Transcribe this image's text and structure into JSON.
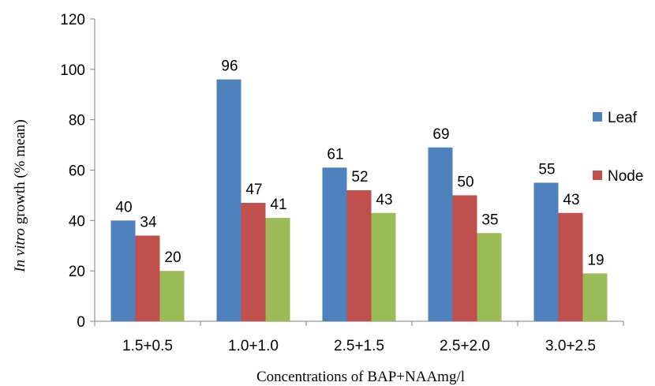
{
  "chart_data": {
    "type": "bar",
    "title": "",
    "xlabel": "Concentrations of BAP+NAAmg/l",
    "ylabel_italic": "In vitro",
    "ylabel_rest": " growth (% mean)",
    "ylim": [
      0,
      120
    ],
    "yticks": [
      "0",
      "20",
      "40",
      "60",
      "80",
      "100",
      "120"
    ],
    "categories": [
      "1.5+0.5",
      "1.0+1.0",
      "2.5+1.5",
      "2.5+2.0",
      "3.0+2.5"
    ],
    "series": [
      {
        "name": "Leaf",
        "color": "#4f81bd",
        "values": [
          40,
          96,
          61,
          69,
          55
        ]
      },
      {
        "name": "Node",
        "color": "#c0504d",
        "values": [
          34,
          47,
          52,
          50,
          43
        ]
      },
      {
        "color": "#9bbb59",
        "values": [
          20,
          41,
          43,
          35,
          19
        ]
      }
    ],
    "value_labels": [
      [
        "40",
        "96",
        "61",
        "69",
        "55"
      ],
      [
        "34",
        "47",
        "52",
        "50",
        "43"
      ],
      [
        "20",
        "41",
        "43",
        "35",
        "19"
      ]
    ],
    "legend_position": "right",
    "grid": false
  }
}
